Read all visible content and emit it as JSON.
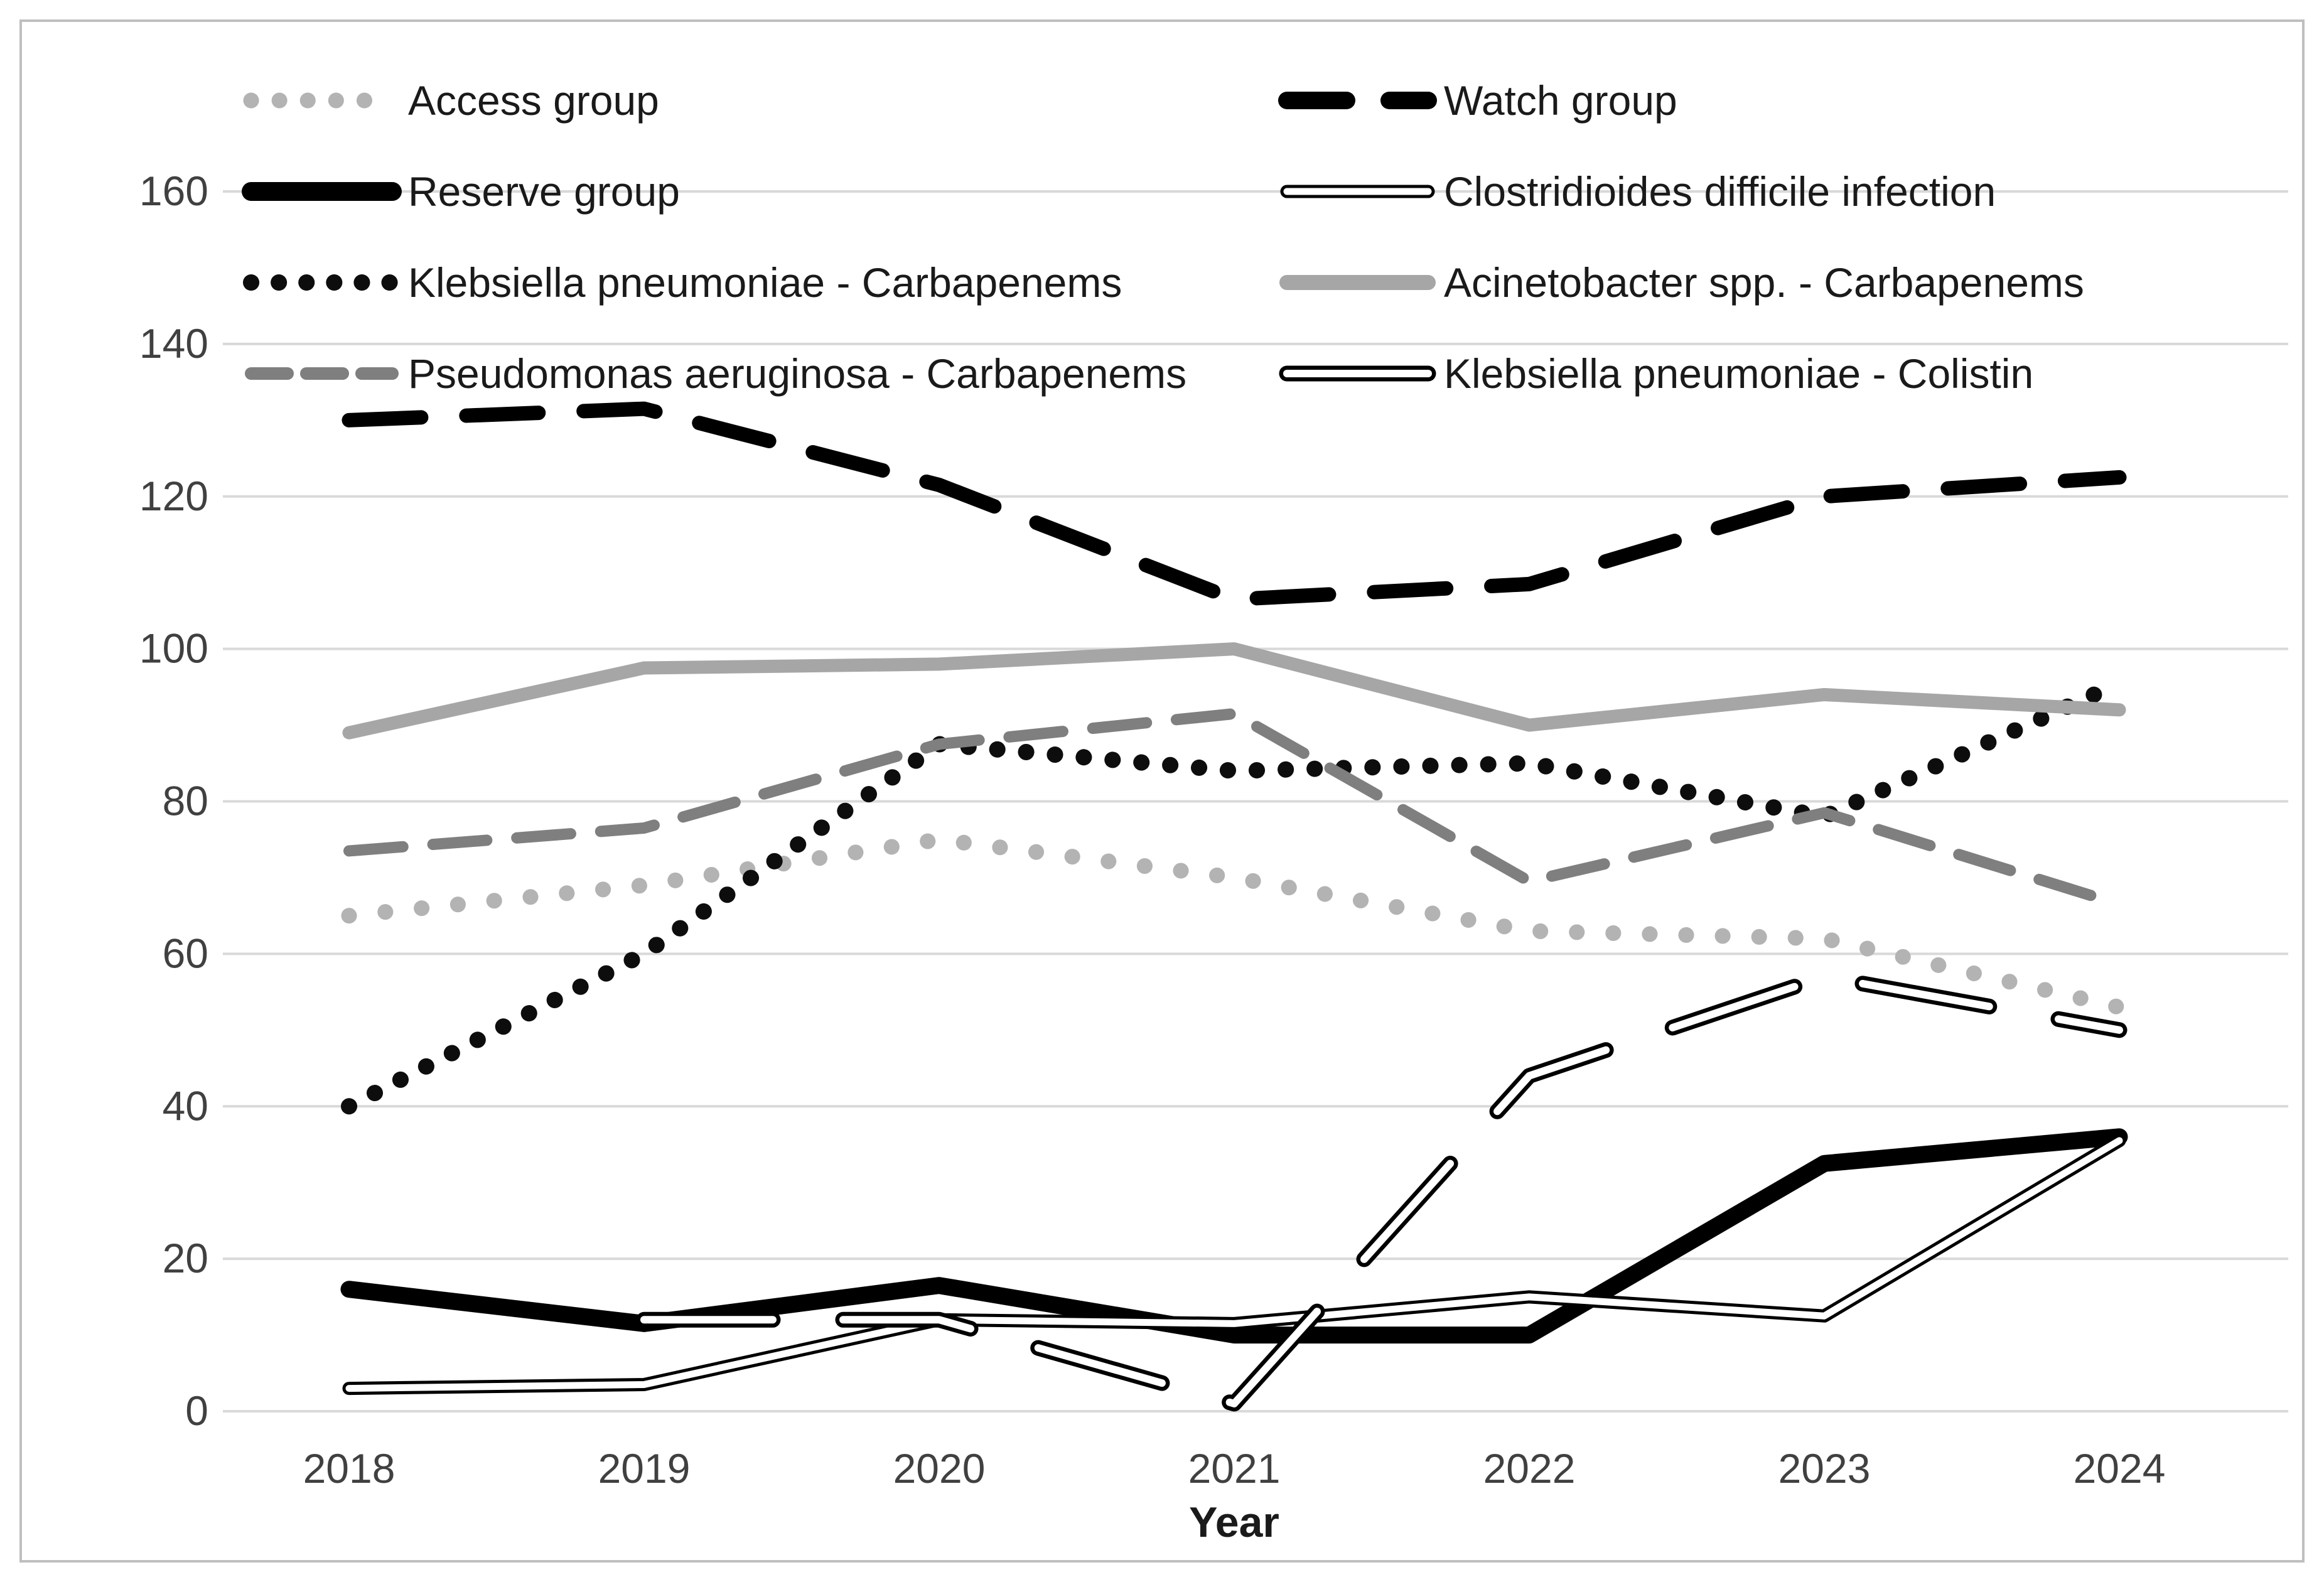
{
  "chart_data": {
    "type": "line",
    "title": "",
    "xlabel": "Year",
    "ylabel": "",
    "x_tick_labels": [
      "2018",
      "2019",
      "2020",
      "2021",
      "2022",
      "2023",
      "2024"
    ],
    "y_tick_labels": [
      "0",
      "20",
      "40",
      "60",
      "80",
      "100",
      "120",
      "140",
      "160"
    ],
    "y_ticks": [
      0,
      20,
      40,
      60,
      80,
      100,
      120,
      140,
      160
    ],
    "ylim": [
      0,
      160
    ],
    "grid": "horizontal",
    "legend_position": "top-inside-two-columns",
    "x": [
      2018,
      2019,
      2020,
      2021,
      2022,
      2023,
      2024
    ],
    "series": [
      {
        "name": "Access group",
        "values": [
          65,
          69,
          75,
          70,
          63,
          62,
          53
        ],
        "color": "#b3b3b3",
        "core_color": null,
        "stroke_style": "dotted"
      },
      {
        "name": "Watch group",
        "values": [
          130,
          131.5,
          121.5,
          106.5,
          108.5,
          120,
          122.5
        ],
        "color": "#000000",
        "core_color": null,
        "stroke_style": "dashed-thick"
      },
      {
        "name": "Reserve group",
        "values": [
          16,
          11.5,
          16.5,
          10,
          10,
          32.5,
          36
        ],
        "color": "#000000",
        "core_color": null,
        "stroke_style": "solid-thick"
      },
      {
        "name": "Clostridioides difficile infection",
        "values": [
          3,
          3.5,
          12,
          11.5,
          15,
          12.5,
          35.5
        ],
        "color": "#000000",
        "core_color": "#ffffff",
        "stroke_style": "double"
      },
      {
        "name": "Klebsiella pneumoniae - Carbapenems",
        "values": [
          40,
          60,
          87.5,
          84,
          85,
          78,
          95.5
        ],
        "color": "#0d0d0d",
        "core_color": null,
        "stroke_style": "dotted-dense"
      },
      {
        "name": "Acinetobacter spp. - Carbapenems",
        "values": [
          89,
          97.5,
          98,
          100,
          90,
          94,
          92
        ],
        "color": "#a6a6a6",
        "core_color": null,
        "stroke_style": "solid"
      },
      {
        "name": "Pseudomonas aeruginosa - Carbapenems",
        "values": [
          73.5,
          76.5,
          87.5,
          91.5,
          69.5,
          78.5,
          66.5
        ],
        "color": "#7f7f7f",
        "core_color": null,
        "stroke_style": "dashed"
      },
      {
        "name": "Klebsiella pneumoniae - Colistin",
        "values": [
          null,
          12,
          12,
          1,
          44,
          57,
          50
        ],
        "color": "#000000",
        "core_color": "#ffffff",
        "stroke_style": "double-dashed"
      }
    ],
    "colors": {
      "gridline": "#d9d9d9",
      "frame_border": "#bfbfbf",
      "tick_text": "#404040",
      "legend_text": "#1a1a1a",
      "background": "#ffffff"
    }
  }
}
